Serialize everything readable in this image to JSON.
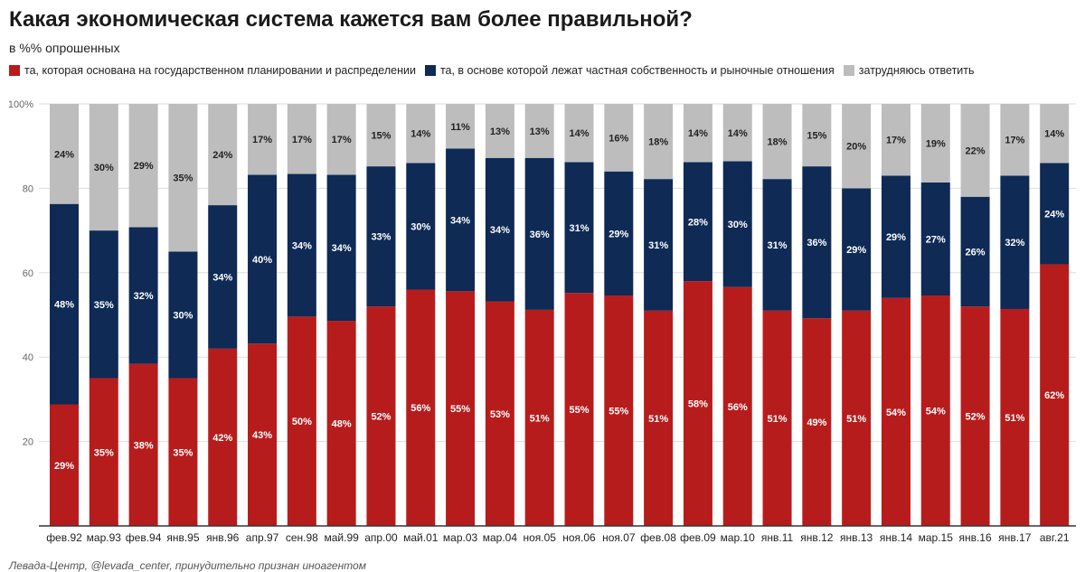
{
  "title": "Какая экономическая система кажется вам более правильной?",
  "subtitle": "в %% опрошенных",
  "source": "Левада-Центр, @levada_center, принудительно признан иноагентом",
  "colors": {
    "planned": "#b71c1c",
    "market": "#0e2a55",
    "undecided": "#bdbdbd",
    "grid": "#dddddd",
    "axis": "#333333"
  },
  "chart_data": {
    "type": "bar",
    "stacked": true,
    "title": "Какая экономическая система кажется вам более правильной?",
    "subtitle": "в %% опрошенных",
    "legend_position": "top-left",
    "grid": true,
    "ylim": [
      0,
      100
    ],
    "yticks": [
      20,
      40,
      60,
      80,
      100
    ],
    "ytick_labels": [
      "20",
      "40",
      "60",
      "80",
      "100%"
    ],
    "categories": [
      "фев.92",
      "мар.93",
      "фев.94",
      "янв.95",
      "янв.96",
      "апр.97",
      "сен.98",
      "май.99",
      "апр.00",
      "май.01",
      "мар.03",
      "мар.04",
      "ноя.05",
      "ноя.06",
      "ноя.07",
      "фев.08",
      "фев.09",
      "мар.10",
      "янв.11",
      "янв.12",
      "янв.13",
      "янв.14",
      "мар.15",
      "янв.16",
      "янв.17",
      "авг.21"
    ],
    "series": [
      {
        "name": "та, которая основана на государственном планировании и распределении",
        "values": [
          29,
          35,
          38,
          35,
          42,
          43,
          50,
          48,
          52,
          56,
          55,
          53,
          51,
          55,
          55,
          51,
          58,
          56,
          51,
          49,
          51,
          54,
          54,
          52,
          51,
          62
        ],
        "heights": [
          28.8,
          35,
          38.4,
          35,
          42,
          43.2,
          49.6,
          48.6,
          52,
          56,
          55.6,
          53.2,
          51.2,
          55.2,
          54.6,
          51,
          58,
          56.6,
          51,
          49.2,
          51,
          54,
          54.6,
          52,
          51.4,
          62
        ]
      },
      {
        "name": "та, в основе которой лежат частная собственность и рыночные отношения",
        "values": [
          48,
          35,
          32,
          30,
          34,
          40,
          34,
          34,
          33,
          30,
          34,
          34,
          36,
          31,
          29,
          31,
          28,
          30,
          31,
          36,
          29,
          29,
          27,
          26,
          32,
          24
        ],
        "heights": [
          47.5,
          35,
          32.4,
          30,
          34,
          40,
          33.8,
          34.6,
          33.2,
          30,
          33.8,
          34,
          36,
          31,
          29.4,
          31.2,
          28.2,
          29.8,
          31.2,
          36,
          29,
          29,
          26.8,
          26,
          31.6,
          24
        ]
      },
      {
        "name": "затрудняюсь ответить",
        "values": [
          24,
          30,
          29,
          35,
          24,
          17,
          17,
          17,
          15,
          14,
          11,
          13,
          13,
          14,
          16,
          18,
          14,
          14,
          18,
          15,
          20,
          17,
          19,
          22,
          17,
          14
        ],
        "heights": [
          23.7,
          30,
          29.2,
          35,
          24,
          16.8,
          16.6,
          16.8,
          14.8,
          14,
          10.6,
          12.8,
          12.8,
          13.8,
          16,
          17.8,
          13.8,
          13.6,
          17.8,
          14.8,
          20,
          17,
          18.6,
          22,
          17,
          14
        ]
      }
    ]
  }
}
